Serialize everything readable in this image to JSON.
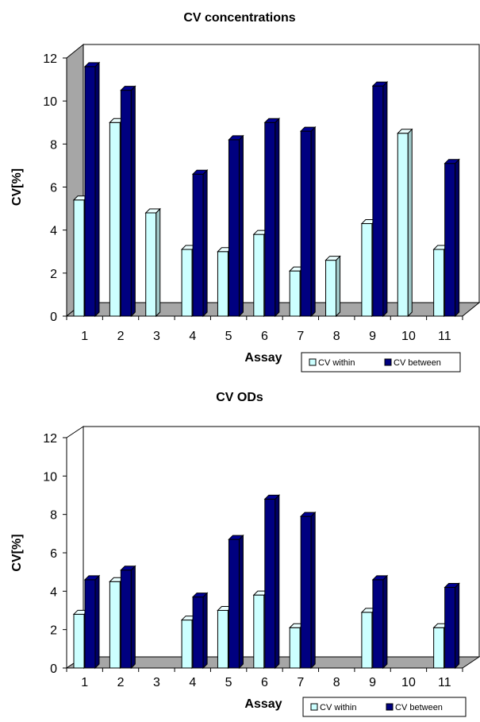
{
  "chart_data": [
    {
      "type": "bar",
      "title": "CV concentrations",
      "xlabel": "Assay",
      "ylabel": "CV[%]",
      "categories": [
        "1",
        "2",
        "3",
        "4",
        "5",
        "6",
        "7",
        "8",
        "9",
        "10",
        "11"
      ],
      "ylim": [
        0,
        12
      ],
      "yticks": [
        0,
        2,
        4,
        6,
        8,
        10,
        12
      ],
      "grid": false,
      "legend_position": "bottom-right",
      "series": [
        {
          "name": "CV within",
          "color": "#ccffff",
          "values": [
            5.4,
            9.0,
            4.8,
            3.1,
            3.0,
            3.8,
            2.1,
            2.6,
            4.3,
            8.5,
            3.1
          ]
        },
        {
          "name": "CV between",
          "color": "#000080",
          "values": [
            11.6,
            10.5,
            null,
            6.6,
            8.2,
            9.0,
            8.6,
            null,
            10.7,
            null,
            7.1
          ]
        }
      ]
    },
    {
      "type": "bar",
      "title": "CV ODs",
      "xlabel": "Assay",
      "ylabel": "CV[%]",
      "categories": [
        "1",
        "2",
        "3",
        "4",
        "5",
        "6",
        "7",
        "8",
        "9",
        "10",
        "11"
      ],
      "ylim": [
        0,
        12
      ],
      "yticks": [
        0,
        2,
        4,
        6,
        8,
        10,
        12
      ],
      "grid": false,
      "legend_position": "bottom-right",
      "series": [
        {
          "name": "CV within",
          "color": "#ccffff",
          "values": [
            2.8,
            4.5,
            null,
            2.5,
            3.0,
            3.8,
            2.1,
            null,
            2.9,
            null,
            2.1
          ]
        },
        {
          "name": "CV between",
          "color": "#000080",
          "values": [
            4.6,
            5.1,
            null,
            3.7,
            6.7,
            8.8,
            7.9,
            null,
            4.6,
            null,
            4.2
          ]
        }
      ]
    }
  ]
}
